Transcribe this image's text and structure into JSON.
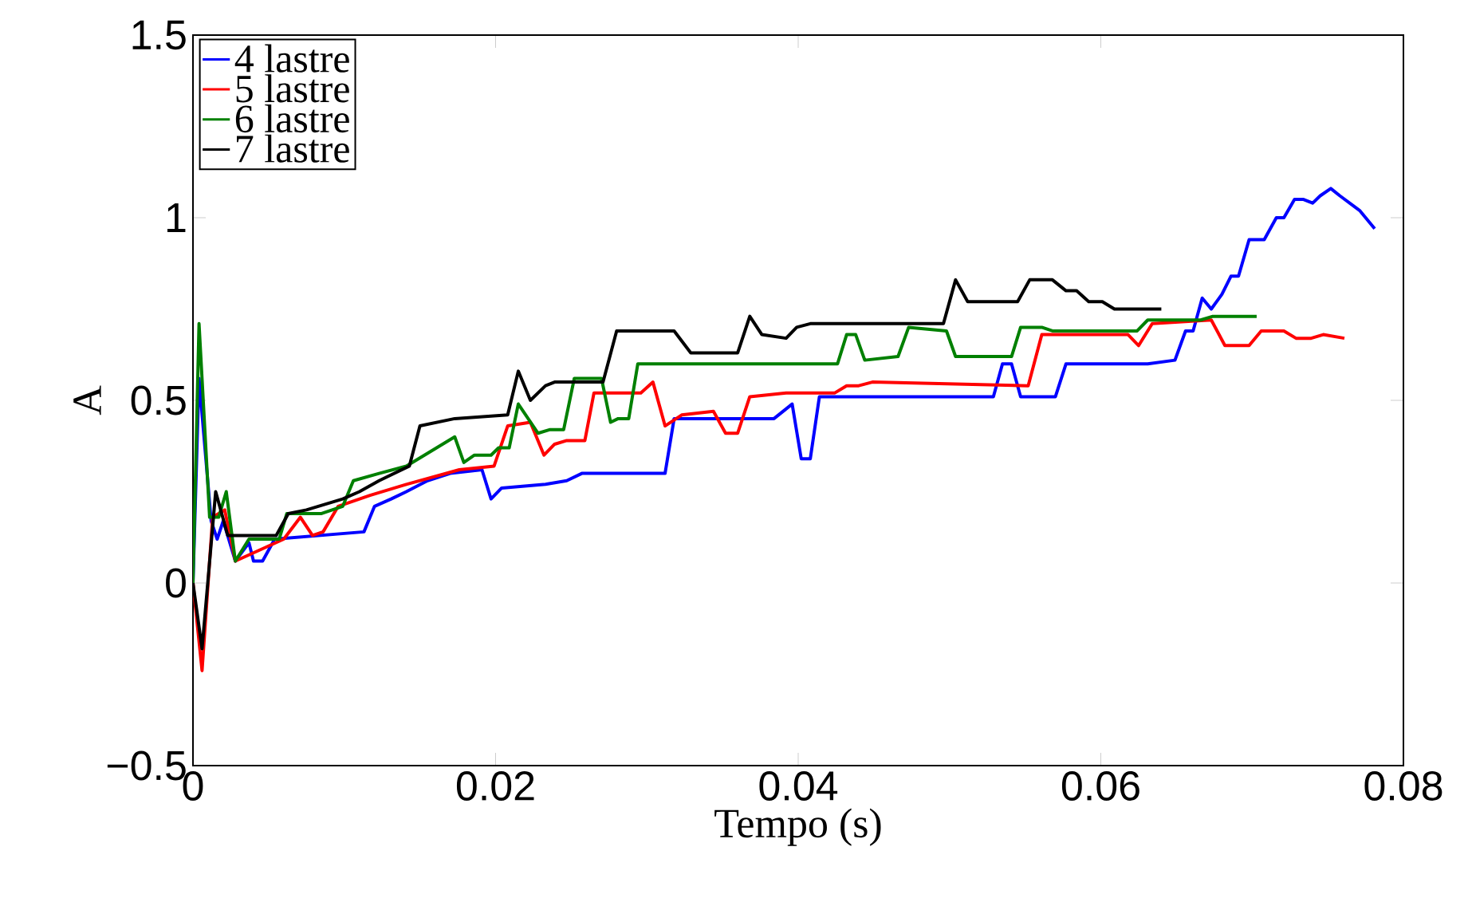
{
  "chart_data": {
    "type": "line",
    "xlabel": "Tempo (s)",
    "ylabel": "A",
    "xlim": [
      0,
      0.08
    ],
    "ylim": [
      -0.5,
      1.5
    ],
    "xticks": [
      0,
      0.02,
      0.04,
      0.06,
      0.08
    ],
    "yticks": [
      {
        "value": -0.5,
        "label": "−0.5"
      },
      0,
      0.5,
      1,
      1.5
    ],
    "grid": false,
    "legend": "top left",
    "series": [
      {
        "name": "4 lastre",
        "color": "#0000ff",
        "x": [
          0,
          0.0004,
          0.0012,
          0.0016,
          0.002,
          0.0028,
          0.0037,
          0.004,
          0.0046,
          0.0054,
          0.0113,
          0.012,
          0.0131,
          0.0141,
          0.0155,
          0.017,
          0.0191,
          0.0197,
          0.0204,
          0.0233,
          0.0247,
          0.0257,
          0.0312,
          0.0318,
          0.0384,
          0.0396,
          0.0402,
          0.0408,
          0.0414,
          0.0529,
          0.0535,
          0.0541,
          0.0547,
          0.057,
          0.0577,
          0.0631,
          0.0649,
          0.0656,
          0.0661,
          0.0667,
          0.0673,
          0.068,
          0.0686,
          0.0691,
          0.0698,
          0.0708,
          0.0716,
          0.0721,
          0.0728,
          0.0734,
          0.074,
          0.0745,
          0.0752,
          0.0758,
          0.0771,
          0.0777,
          0.0781
        ],
        "values": [
          0,
          0.56,
          0.17,
          0.12,
          0.17,
          0.06,
          0.11,
          0.06,
          0.06,
          0.12,
          0.14,
          0.21,
          0.23,
          0.25,
          0.28,
          0.3,
          0.31,
          0.23,
          0.26,
          0.27,
          0.28,
          0.3,
          0.3,
          0.45,
          0.45,
          0.49,
          0.34,
          0.34,
          0.51,
          0.51,
          0.6,
          0.6,
          0.51,
          0.51,
          0.6,
          0.6,
          0.61,
          0.69,
          0.69,
          0.78,
          0.75,
          0.79,
          0.84,
          0.84,
          0.94,
          0.94,
          1.0,
          1.0,
          1.05,
          1.05,
          1.04,
          1.06,
          1.08,
          1.06,
          1.02,
          0.99,
          0.97
        ]
      },
      {
        "name": "5 lastre",
        "color": "#ff0000",
        "x": [
          0,
          0.0006,
          0.0013,
          0.0021,
          0.0028,
          0.0037,
          0.006,
          0.0071,
          0.0079,
          0.0086,
          0.0096,
          0.0117,
          0.0141,
          0.0176,
          0.0199,
          0.0208,
          0.0223,
          0.0232,
          0.0239,
          0.0247,
          0.0259,
          0.0265,
          0.0296,
          0.0304,
          0.0312,
          0.0323,
          0.0344,
          0.0352,
          0.036,
          0.0368,
          0.0392,
          0.0424,
          0.0432,
          0.044,
          0.0449,
          0.0552,
          0.0561,
          0.0618,
          0.0625,
          0.0634,
          0.0673,
          0.0682,
          0.0698,
          0.0706,
          0.0721,
          0.0729,
          0.0739,
          0.0747,
          0.0761
        ],
        "values": [
          0,
          -0.24,
          0.18,
          0.2,
          0.06,
          null,
          0.12,
          0.18,
          0.13,
          0.14,
          0.21,
          0.24,
          0.27,
          0.31,
          0.32,
          0.43,
          0.44,
          0.35,
          0.38,
          0.39,
          0.39,
          0.52,
          0.52,
          0.55,
          0.43,
          0.46,
          0.47,
          0.41,
          0.41,
          0.51,
          0.52,
          0.52,
          0.54,
          0.54,
          0.55,
          0.54,
          0.68,
          0.68,
          0.65,
          0.71,
          0.72,
          0.65,
          0.65,
          0.69,
          0.69,
          0.67,
          0.67,
          0.68,
          0.67
        ]
      },
      {
        "name": "6 lastre",
        "color": "#008000",
        "x": [
          0,
          0.0004,
          0.0011,
          0.0017,
          0.0022,
          0.0028,
          0.0037,
          0.0057,
          0.0062,
          0.0085,
          0.0099,
          0.0106,
          0.0123,
          0.0141,
          0.0173,
          0.0179,
          0.0186,
          0.0197,
          0.0202,
          0.0209,
          0.0215,
          0.0228,
          0.0236,
          0.0245,
          0.0252,
          0.027,
          0.0276,
          0.0281,
          0.0288,
          0.0294,
          0.0426,
          0.0432,
          0.0438,
          0.0444,
          0.0466,
          0.0473,
          0.0498,
          0.0504,
          0.0541,
          0.0547,
          0.0561,
          0.0568,
          0.0624,
          0.0631,
          0.0666,
          0.0674,
          0.0703
        ],
        "values": [
          0,
          0.71,
          0.18,
          0.18,
          0.25,
          0.06,
          0.12,
          0.12,
          0.19,
          0.19,
          0.21,
          0.28,
          0.3,
          0.32,
          0.4,
          0.33,
          0.35,
          0.35,
          0.37,
          0.37,
          0.49,
          0.41,
          0.42,
          0.42,
          0.56,
          0.56,
          0.44,
          0.45,
          0.45,
          0.6,
          0.6,
          0.68,
          0.68,
          0.61,
          0.62,
          0.7,
          0.69,
          0.62,
          0.62,
          0.7,
          0.7,
          0.69,
          0.69,
          0.72,
          0.72,
          0.73,
          0.73
        ]
      },
      {
        "name": "7 lastre",
        "color": "#000000",
        "x": [
          0,
          0.0006,
          0.0015,
          0.0023,
          0.0055,
          0.0063,
          0.0075,
          0.0099,
          0.011,
          0.0123,
          0.0143,
          0.015,
          0.0173,
          0.0208,
          0.0215,
          0.0223,
          0.0233,
          0.0239,
          0.0271,
          0.028,
          0.0318,
          0.0329,
          0.036,
          0.0368,
          0.0376,
          0.0392,
          0.0399,
          0.0408,
          0.0496,
          0.0504,
          0.0512,
          0.0545,
          0.0553,
          0.0568,
          0.0577,
          0.0584,
          0.0592,
          0.0601,
          0.0609,
          0.0624,
          0.064
        ],
        "values": [
          0,
          -0.18,
          0.25,
          0.13,
          0.13,
          0.19,
          0.2,
          0.23,
          0.25,
          0.28,
          0.32,
          0.43,
          0.45,
          0.46,
          0.58,
          0.5,
          0.54,
          0.55,
          0.55,
          0.69,
          0.69,
          0.63,
          0.63,
          0.73,
          0.68,
          0.67,
          0.7,
          0.71,
          0.71,
          0.83,
          0.77,
          0.77,
          0.83,
          0.83,
          0.8,
          0.8,
          0.77,
          0.77,
          0.75,
          0.75,
          0.75
        ]
      }
    ]
  }
}
